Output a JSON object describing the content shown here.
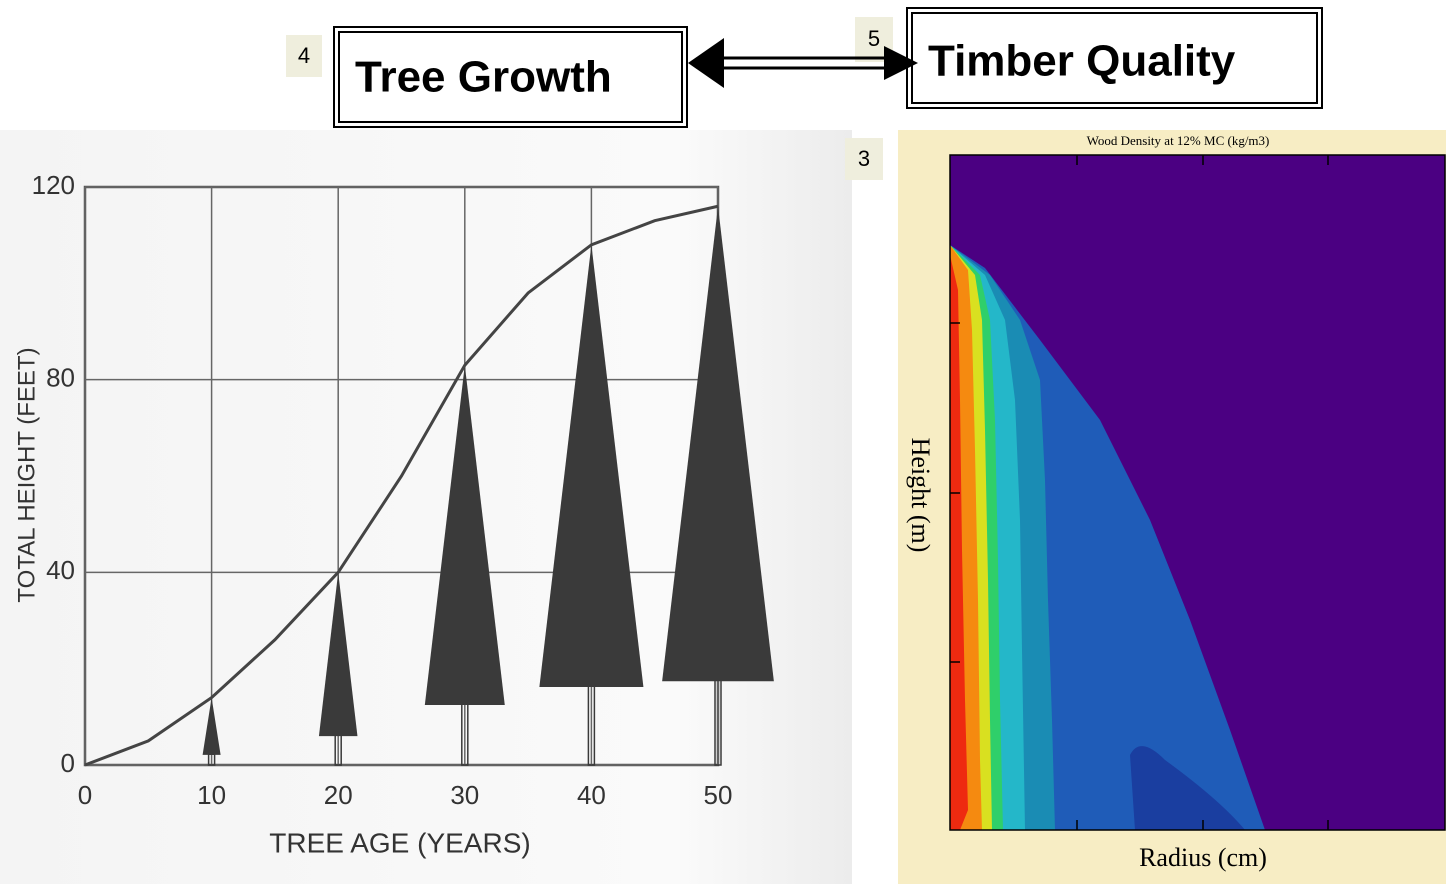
{
  "labels": [
    {
      "number": 4,
      "text": "Tree Growth"
    },
    {
      "number": 5,
      "text": "Timber Quality"
    }
  ],
  "panel_number": 3,
  "growth_chart": {
    "type": "line",
    "x_label": "TREE AGE (YEARS)",
    "y_label": "TOTAL HEIGHT (FEET)",
    "x": [
      0,
      5,
      10,
      15,
      20,
      25,
      30,
      35,
      40,
      45,
      50
    ],
    "values": [
      0,
      5,
      14,
      26,
      40,
      60,
      83,
      98,
      108,
      113,
      116
    ],
    "xlim": [
      0,
      50
    ],
    "ylim": [
      0,
      120
    ],
    "xticks": [
      0,
      10,
      20,
      30,
      40,
      50
    ],
    "yticks": [
      0,
      40,
      80,
      120
    ],
    "grid": true,
    "color": "#444444"
  },
  "density_chart": {
    "title": "Wood Density at 12% MC (kg/m3)",
    "x_label": "Radius (cm)",
    "y_label": "Height (m)"
  }
}
